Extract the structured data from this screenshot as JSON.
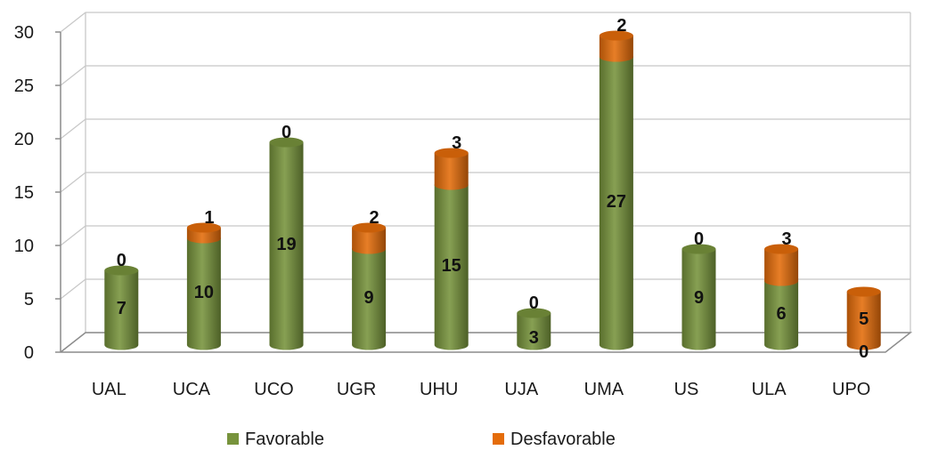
{
  "chart_data": {
    "type": "bar",
    "stacked": true,
    "style": "3d-cylinder",
    "categories": [
      "UAL",
      "UCA",
      "UCO",
      "UGR",
      "UHU",
      "UJA",
      "UMA",
      "US",
      "ULA",
      "UPO"
    ],
    "series": [
      {
        "name": "Favorable",
        "color": "#77933c",
        "values": [
          7,
          10,
          19,
          9,
          15,
          3,
          27,
          9,
          6,
          0
        ]
      },
      {
        "name": "Desfavorable",
        "color": "#e46c0a",
        "values": [
          0,
          1,
          0,
          2,
          3,
          0,
          2,
          0,
          3,
          5
        ]
      }
    ],
    "y_ticks": [
      "0",
      "5",
      "10",
      "15",
      "20",
      "25",
      "30"
    ],
    "ylim": [
      0,
      30
    ],
    "grid": true,
    "legend": "bottom",
    "title": "",
    "xlabel": "",
    "ylabel": ""
  }
}
